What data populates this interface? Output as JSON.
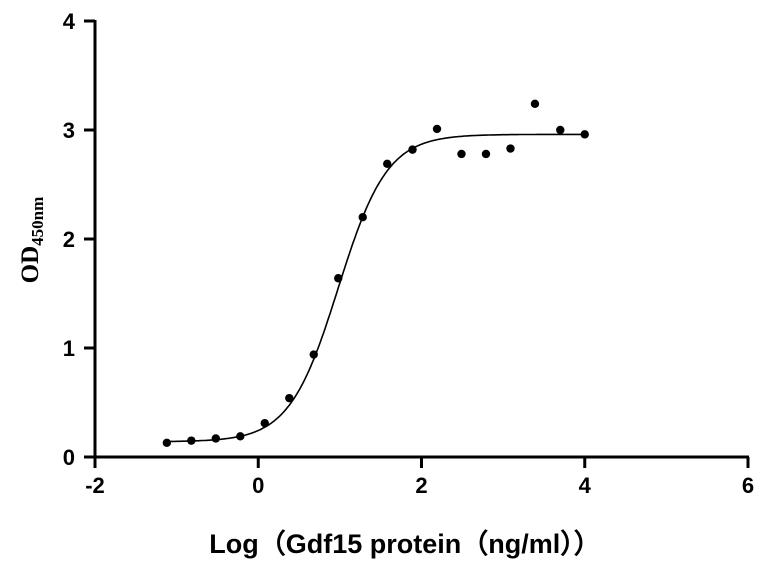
{
  "chart_data": {
    "type": "scatter",
    "title": "",
    "xlabel": "Log（Gdf15 protein（ng/ml））",
    "ylabel_main": "OD",
    "ylabel_sub": "450nm",
    "xlim": [
      -2,
      6
    ],
    "ylim": [
      0,
      4
    ],
    "xticks": [
      "-2",
      "0",
      "2",
      "4",
      "6"
    ],
    "yticks": [
      "0",
      "1",
      "2",
      "3",
      "4"
    ],
    "grid": false,
    "legend": "none",
    "points": {
      "x": [
        -1.12,
        -0.82,
        -0.52,
        -0.22,
        0.08,
        0.38,
        0.68,
        0.98,
        1.28,
        1.58,
        1.89,
        2.19,
        2.49,
        2.79,
        3.09,
        3.39,
        3.7,
        4.0
      ],
      "y": [
        0.13,
        0.15,
        0.17,
        0.19,
        0.31,
        0.54,
        0.94,
        1.64,
        2.2,
        2.69,
        2.82,
        3.01,
        2.78,
        2.78,
        2.83,
        3.24,
        3.0,
        2.96
      ]
    },
    "fit": {
      "model": "4PL",
      "bottom": 0.14,
      "top": 2.96,
      "logEC50": 0.98,
      "hill": 1.45,
      "x_range": [
        -1.12,
        4.0
      ]
    },
    "colors": {
      "points": "#000000",
      "line": "#000000"
    }
  }
}
